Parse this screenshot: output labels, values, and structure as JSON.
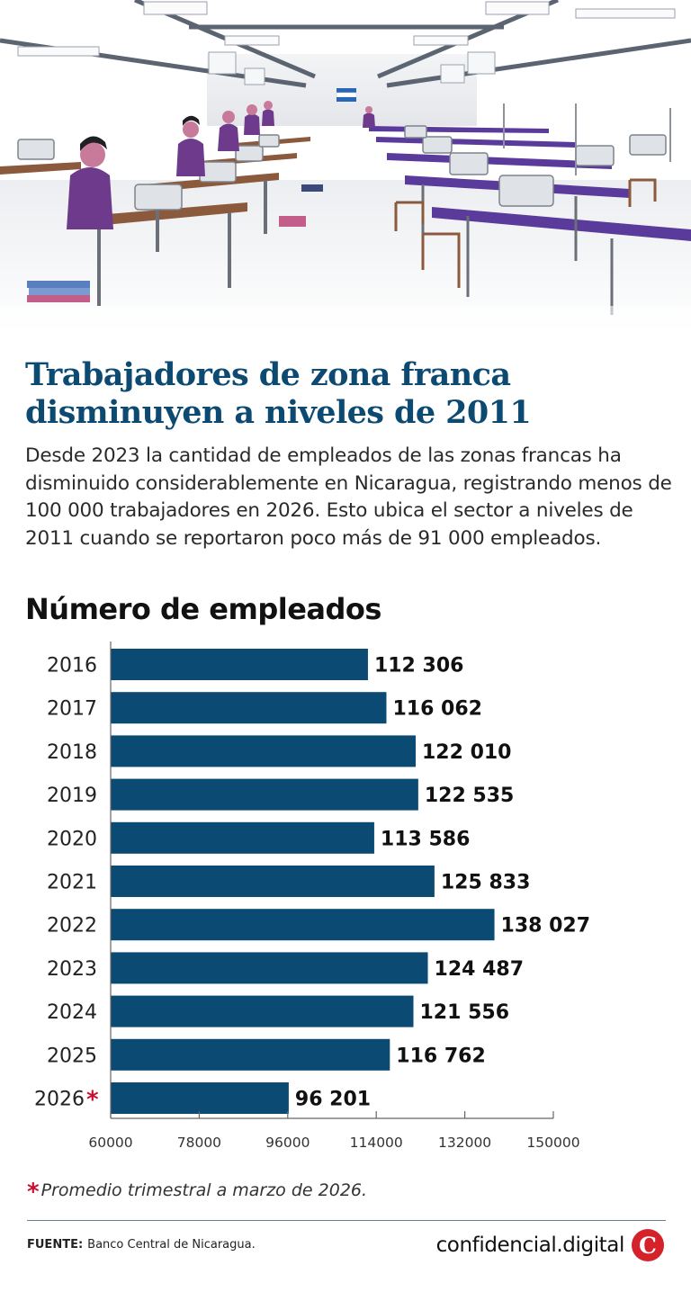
{
  "header": {
    "title_line1": "Trabajadores de zona franca",
    "title_line2": "disminuyen a niveles de 2011"
  },
  "description": "Desde 2023 la cantidad de empleados de las zonas francas ha disminuido considerablemente en Nicaragua, registrando menos de 100 000 trabajadores en 2026. Esto ubica el sector a niveles de 2011 cuando se reportaron poco más de 91 000 empleados.",
  "chart_data": {
    "type": "bar",
    "orientation": "horizontal",
    "title": "Número de empleados",
    "categories": [
      "2016",
      "2017",
      "2018",
      "2019",
      "2020",
      "2021",
      "2022",
      "2023",
      "2024",
      "2025",
      "2026"
    ],
    "category_marker": {
      "2026": "*"
    },
    "values": [
      112306,
      116062,
      122010,
      122535,
      113586,
      125833,
      138027,
      124487,
      121556,
      116762,
      96201
    ],
    "value_labels": [
      "112 306",
      "116 062",
      "122 010",
      "122 535",
      "113 586",
      "125 833",
      "138 027",
      "124 487",
      "121 556",
      "116 762",
      "96 201"
    ],
    "xlim": [
      60000,
      150000
    ],
    "xticks": [
      60000,
      78000,
      96000,
      114000,
      132000,
      150000
    ],
    "bar_color": "#0b4a73",
    "grid": false
  },
  "footnote": {
    "marker": "*",
    "text": "Promedio trimestral a marzo de 2026."
  },
  "source": {
    "label": "FUENTE:",
    "text": "Banco Central de Nicaragua."
  },
  "brand": {
    "name": "confidencial.digital",
    "logo_letter": "C"
  },
  "colors": {
    "title": "#0d4a72",
    "bar": "#0b4a73",
    "accent": "#c8102e",
    "brand_logo": "#d4212a"
  }
}
